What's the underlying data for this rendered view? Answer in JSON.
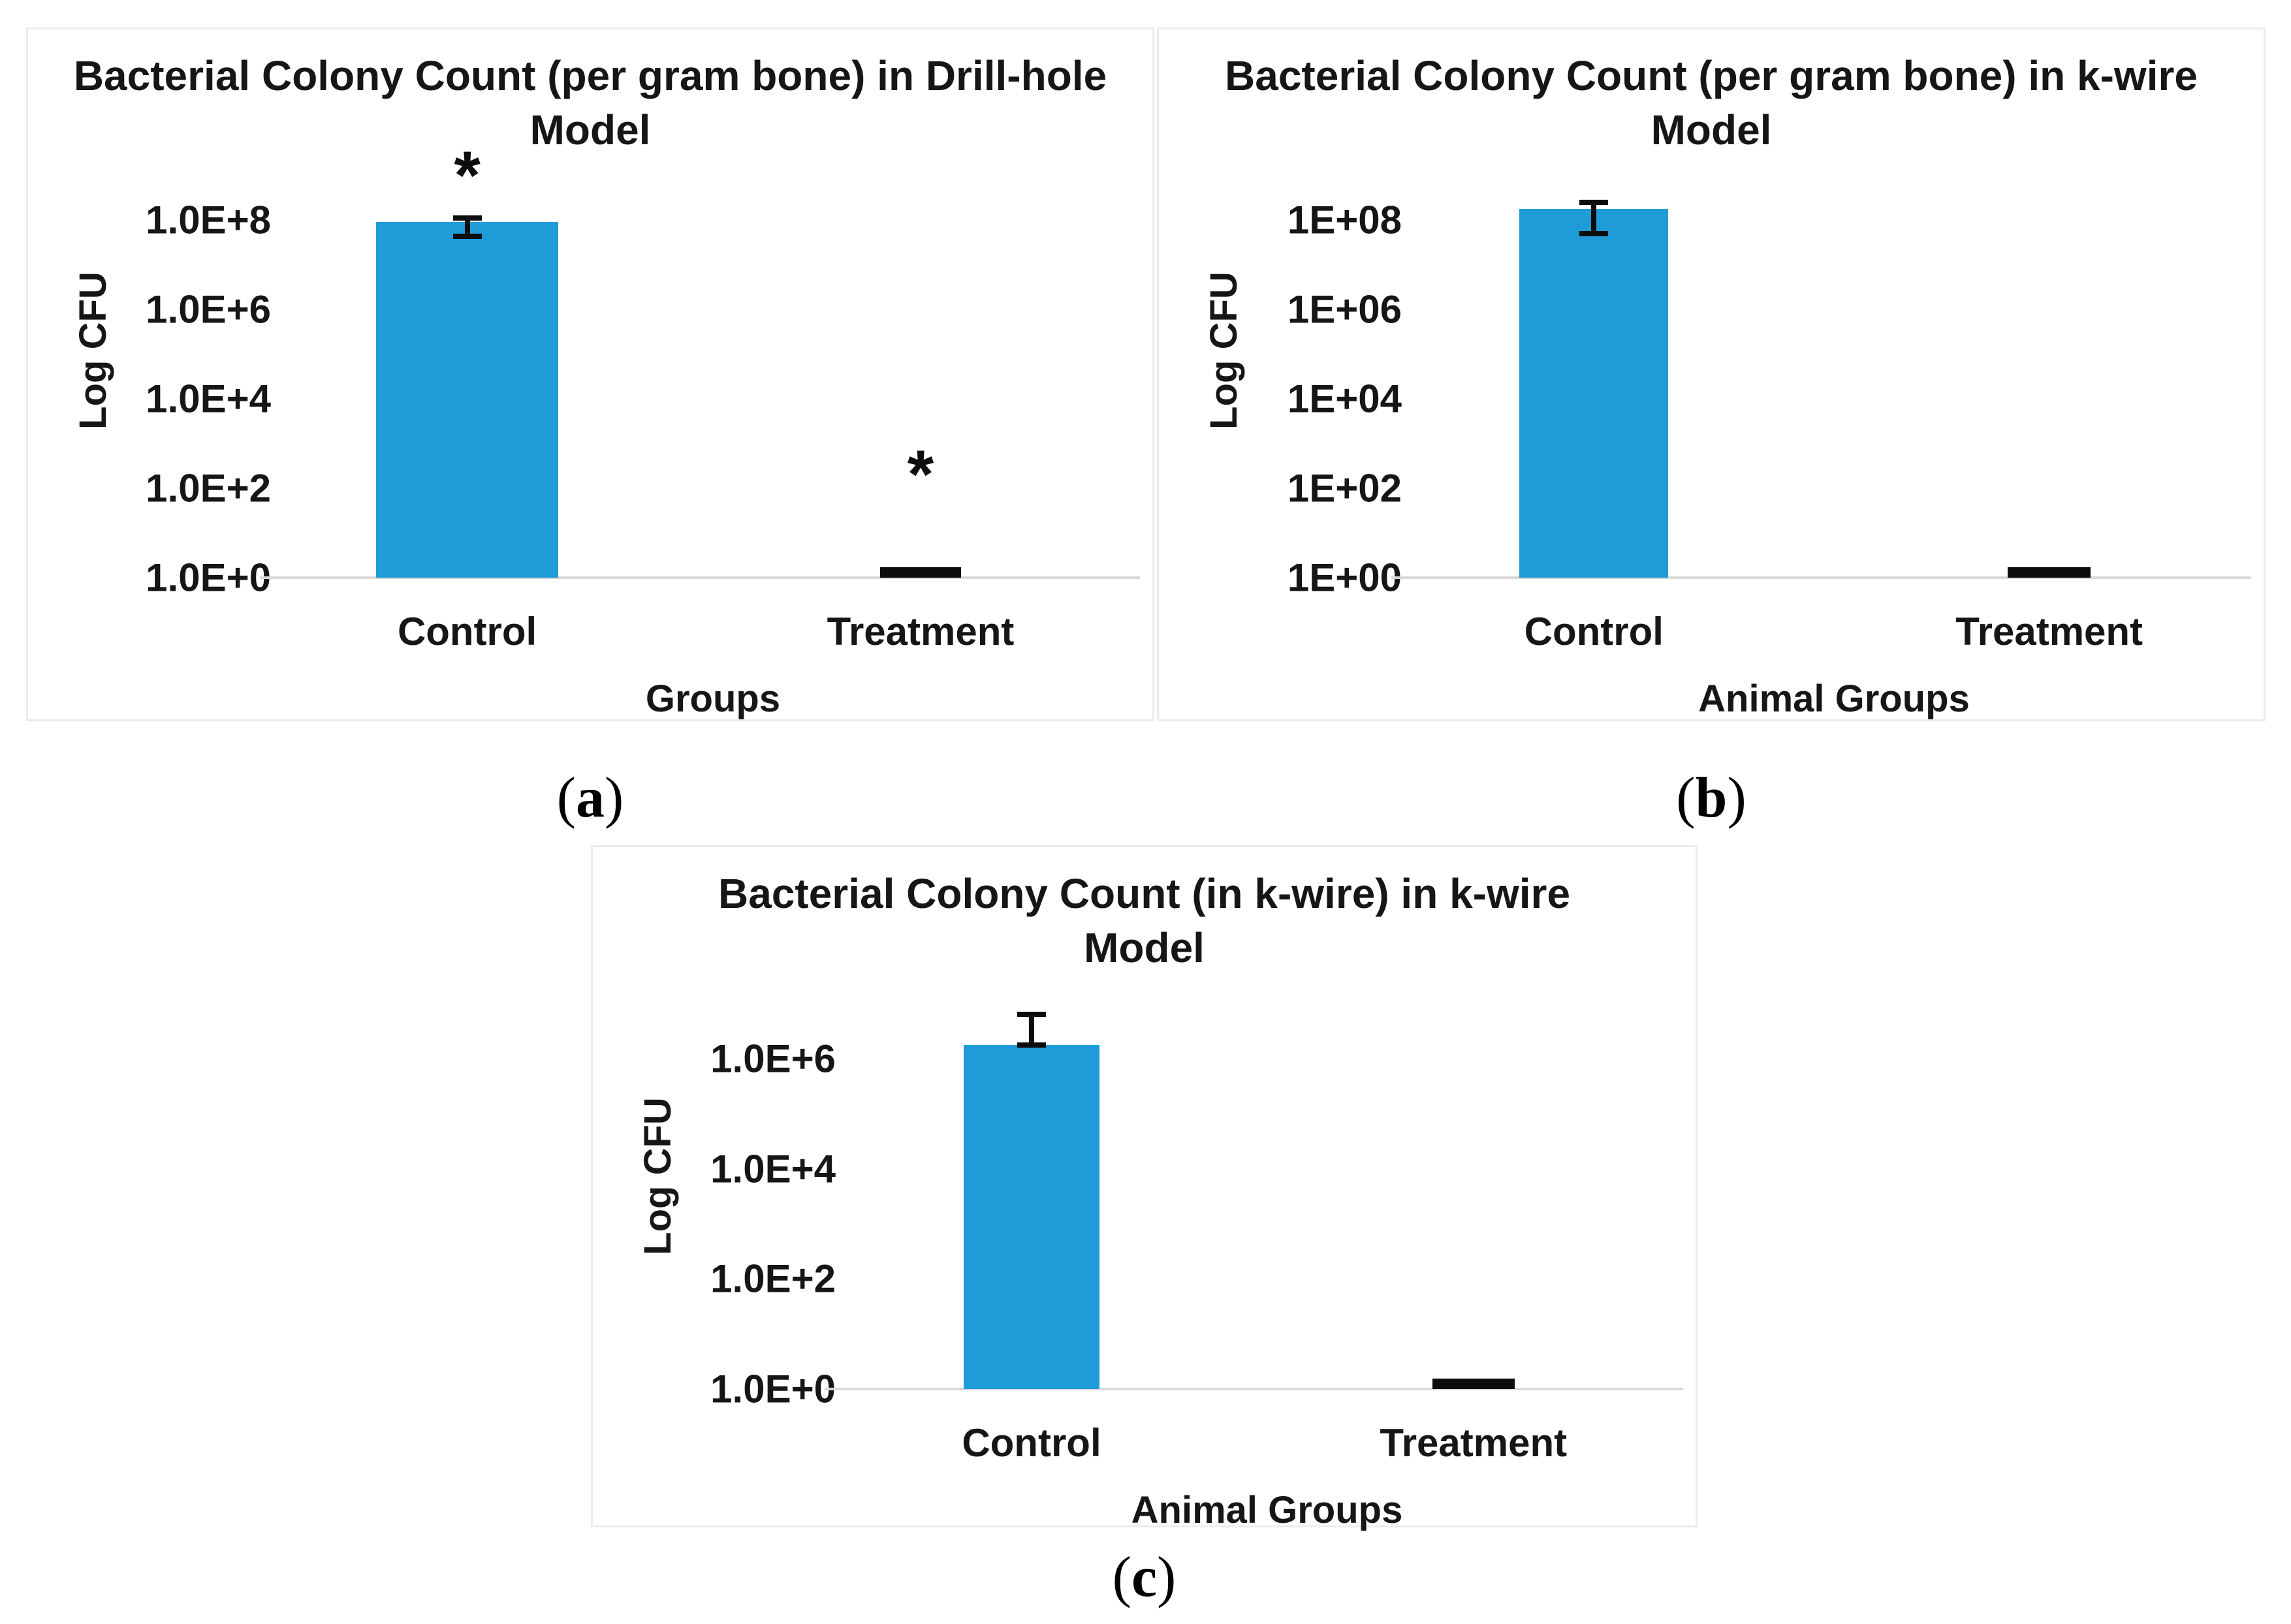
{
  "figure": {
    "background": "#ffffff",
    "captions": [
      {
        "open": "(",
        "letter": "a",
        "close": ")"
      },
      {
        "open": "(",
        "letter": "b",
        "close": ")"
      },
      {
        "open": "(",
        "letter": "c",
        "close": ")"
      }
    ]
  },
  "colors": {
    "bar_blue": "#1f9cd8",
    "bar_black": "#0c0c0c",
    "gridline": "#d9d9d9",
    "panel_border": "#ececec",
    "text": "#161616"
  },
  "chart_data": [
    {
      "id": "a",
      "type": "bar",
      "title": "Bacterial Colony Count (per gram bone) in Drill-hole Model",
      "ylabel": "Log CFU",
      "xlabel": "Groups",
      "yscale": "log",
      "grid": false,
      "legend": null,
      "ylim_exp": [
        0,
        8
      ],
      "yticks": [
        {
          "label": "1.0E+0",
          "exp": 0
        },
        {
          "label": "1.0E+2",
          "exp": 2
        },
        {
          "label": "1.0E+4",
          "exp": 4
        },
        {
          "label": "1.0E+6",
          "exp": 6
        },
        {
          "label": "1.0E+8",
          "exp": 8
        }
      ],
      "categories": [
        "Control",
        "Treatment"
      ],
      "bars": [
        {
          "category": "Control",
          "value": "≈1E+08",
          "value_exp": 7.95,
          "style": "bar",
          "color": "blue",
          "error_up_decades": 0.15,
          "error_down_decades": 0.38,
          "annotation": "*",
          "annotation_exp": 9.0
        },
        {
          "category": "Treatment",
          "value": "≈1E+00",
          "value_exp": 0.2,
          "style": "dash",
          "color": "black",
          "annotation": "*",
          "annotation_exp": 2.3
        }
      ]
    },
    {
      "id": "b",
      "type": "bar",
      "title": "Bacterial Colony Count (per gram bone) in k-wire Model",
      "ylabel": "Log CFU",
      "xlabel": "Animal Groups",
      "yscale": "log",
      "grid": false,
      "legend": null,
      "ylim_exp": [
        0,
        8
      ],
      "yticks": [
        {
          "label": "1E+00",
          "exp": 0
        },
        {
          "label": "1E+02",
          "exp": 2
        },
        {
          "label": "1E+04",
          "exp": 4
        },
        {
          "label": "1E+06",
          "exp": 6
        },
        {
          "label": "1E+08",
          "exp": 8
        }
      ],
      "categories": [
        "Control",
        "Treatment"
      ],
      "bars": [
        {
          "category": "Control",
          "value": "≈1.5E+08",
          "value_exp": 8.25,
          "style": "bar",
          "color": "blue",
          "error_up_decades": 0.2,
          "error_down_decades": 0.62,
          "annotation": null
        },
        {
          "category": "Treatment",
          "value": "≈1E+00",
          "value_exp": 0.2,
          "style": "dash",
          "color": "black",
          "annotation": null
        }
      ]
    },
    {
      "id": "c",
      "type": "bar",
      "title": "Bacterial Colony Count (in k-wire) in k-wire Model",
      "ylabel": "Log CFU",
      "xlabel": "Animal Groups",
      "yscale": "log",
      "grid": false,
      "legend": null,
      "ylim_exp": [
        0,
        6
      ],
      "yticks": [
        {
          "label": "1.0E+0",
          "exp": 0
        },
        {
          "label": "1.0E+2",
          "exp": 2
        },
        {
          "label": "1.0E+4",
          "exp": 4
        },
        {
          "label": "1.0E+6",
          "exp": 6
        }
      ],
      "categories": [
        "Control",
        "Treatment"
      ],
      "bars": [
        {
          "category": "Control",
          "value": "≈2E+06",
          "value_exp": 6.25,
          "style": "bar",
          "color": "blue",
          "error_up_decades": 0.6,
          "error_down_decades": 0.05,
          "annotation": null
        },
        {
          "category": "Treatment",
          "value": "≈1E+00",
          "value_exp": 0.2,
          "style": "dash",
          "color": "black",
          "annotation": null
        }
      ]
    }
  ]
}
